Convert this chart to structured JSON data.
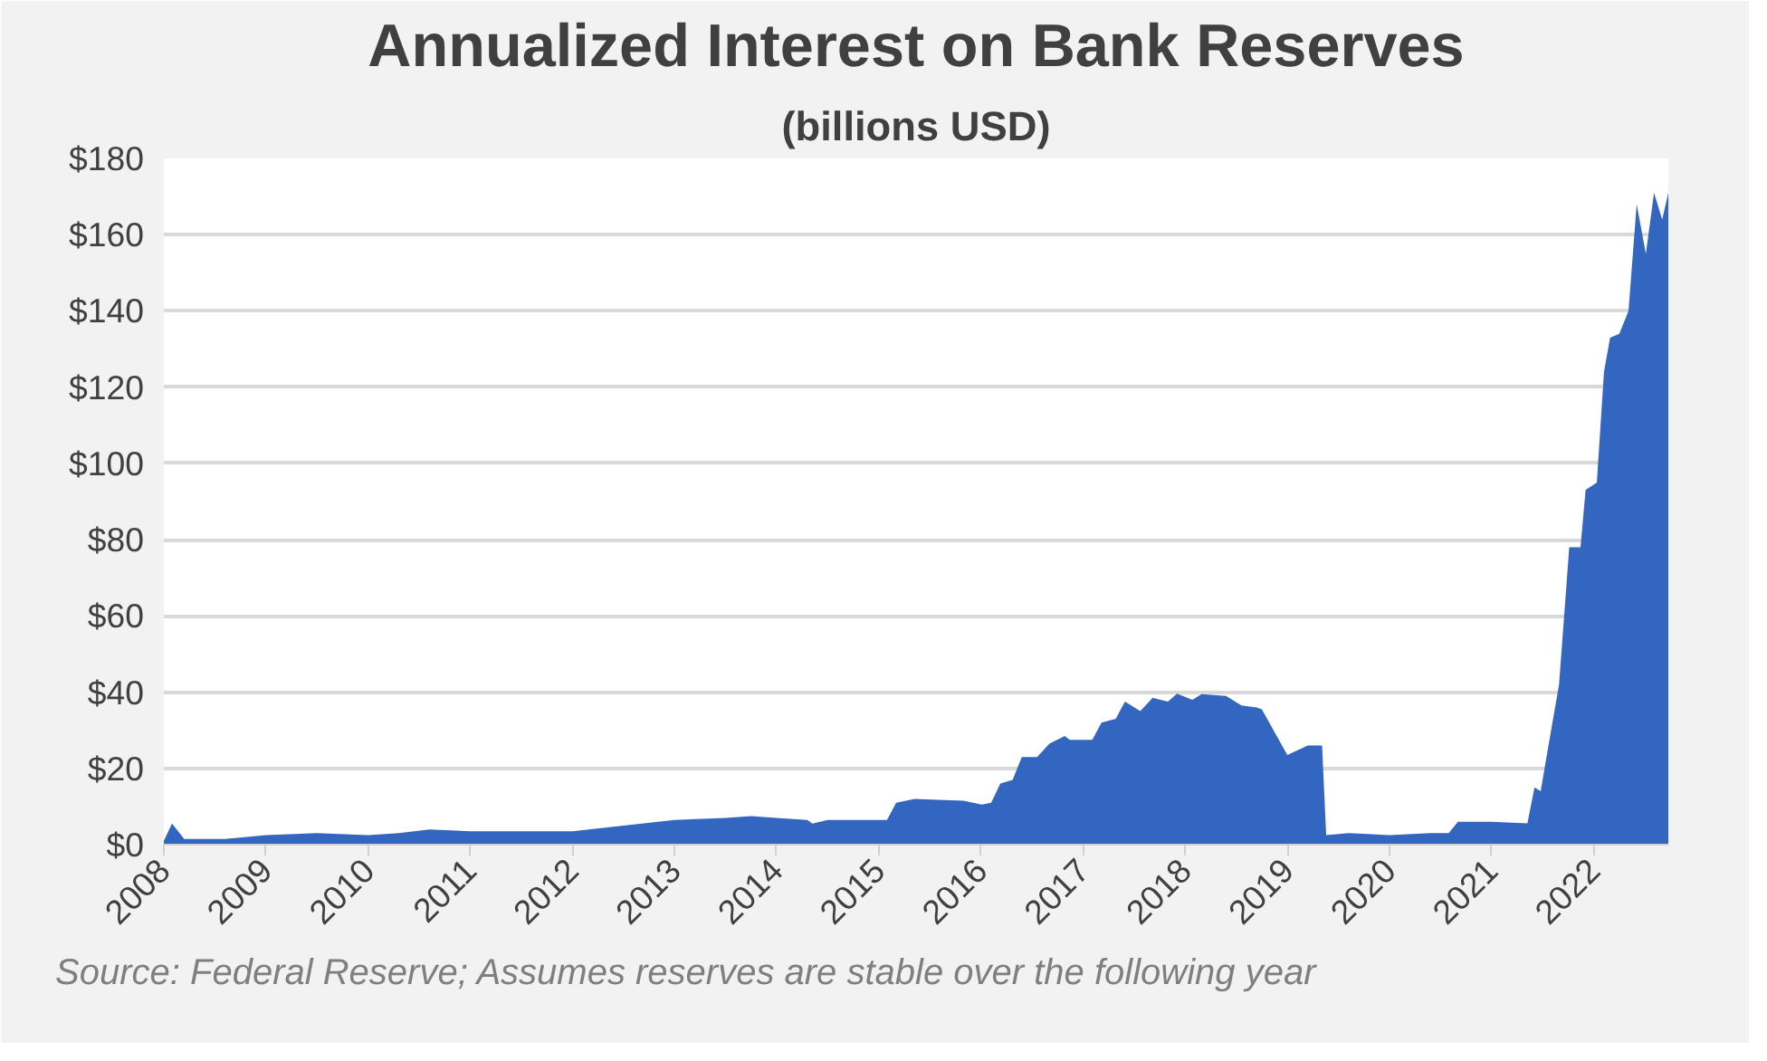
{
  "chart_data": {
    "type": "area",
    "title": "Annualized Interest on Bank Reserves",
    "subtitle": "(billions USD)",
    "x": [
      2008.0,
      2008.08,
      2008.2,
      2008.6,
      2009.0,
      2009.5,
      2010.0,
      2010.3,
      2010.6,
      2011.0,
      2011.5,
      2012.0,
      2012.5,
      2013.0,
      2013.5,
      2013.75,
      2014.0,
      2014.3,
      2014.35,
      2014.5,
      2015.0,
      2015.08,
      2015.17,
      2015.35,
      2015.83,
      2016.01,
      2016.1,
      2016.19,
      2016.31,
      2016.4,
      2016.55,
      2016.67,
      2016.82,
      2016.87,
      2017.09,
      2017.18,
      2017.32,
      2017.41,
      2017.56,
      2017.68,
      2017.83,
      2017.92,
      2018.07,
      2018.16,
      2018.4,
      2018.55,
      2018.7,
      2018.75,
      2019.0,
      2019.2,
      2019.34,
      2019.38,
      2019.6,
      2020.0,
      2020.4,
      2020.58,
      2020.67,
      2021.0,
      2021.35,
      2021.42,
      2021.48,
      2021.55,
      2021.66,
      2021.76,
      2021.87,
      2021.92,
      2022.03,
      2022.1,
      2022.16,
      2022.25,
      2022.34,
      2022.42,
      2022.51,
      2022.59,
      2022.67,
      2022.73
    ],
    "values": [
      1,
      5.5,
      1.5,
      1.5,
      2.5,
      3,
      2.5,
      3,
      4,
      3.5,
      3.5,
      3.5,
      5,
      6.5,
      7,
      7.5,
      7,
      6.5,
      5.5,
      6.5,
      6.5,
      6.5,
      11,
      12,
      11.5,
      10.5,
      11,
      16,
      17,
      23,
      23,
      26.5,
      28.5,
      27.5,
      27.5,
      32,
      33,
      37.5,
      35,
      38.5,
      37.5,
      39.6,
      38,
      39.5,
      39,
      36.5,
      36,
      35.5,
      23.5,
      26,
      26,
      2.5,
      3,
      2.5,
      3,
      3,
      6,
      6,
      5.6,
      15,
      14,
      25,
      42,
      78,
      78,
      93,
      95,
      124,
      133,
      134,
      140,
      168,
      155,
      171,
      164,
      171
    ],
    "color": "#3366c0",
    "xlim": [
      2008,
      2022.73
    ],
    "ylim": [
      0,
      180
    ],
    "xticks": [
      2008,
      2009,
      2010,
      2011,
      2012,
      2013,
      2014,
      2015,
      2016,
      2017,
      2018,
      2019,
      2020,
      2021,
      2022
    ],
    "yticks": [
      {
        "value": 0,
        "label": "$0"
      },
      {
        "value": 20,
        "label": "$20"
      },
      {
        "value": 40,
        "label": "$40"
      },
      {
        "value": 60,
        "label": "$60"
      },
      {
        "value": 80,
        "label": "$80"
      },
      {
        "value": 100,
        "label": "$100"
      },
      {
        "value": 120,
        "label": "$120"
      },
      {
        "value": 140,
        "label": "$140"
      },
      {
        "value": 160,
        "label": "$160"
      },
      {
        "value": 180,
        "label": "$180"
      }
    ],
    "grid": "y",
    "annotations": [
      "Source: Federal Reserve; Assumes reserves are stable over the following year"
    ]
  }
}
